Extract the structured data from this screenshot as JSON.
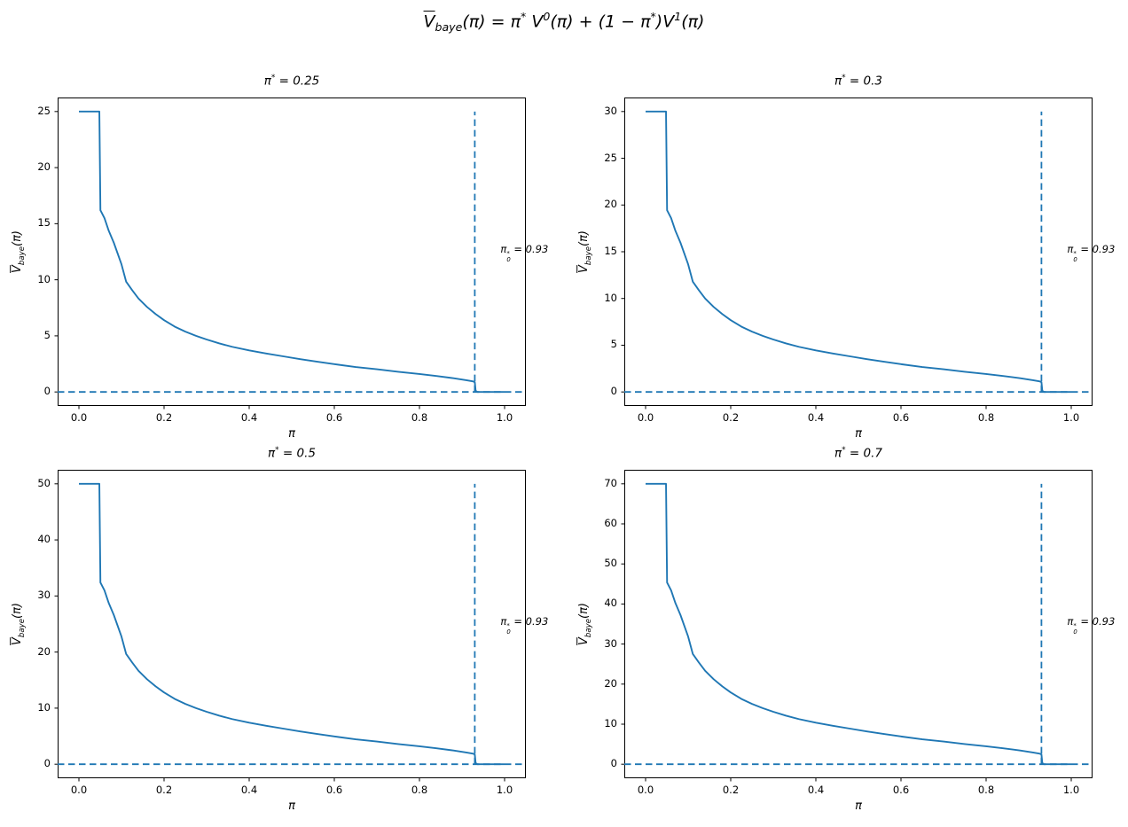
{
  "figure": {
    "title_math": "\\ov{V}_{baye}(π) = π^{*} V^{0}(π) + (1 − π^{*})V^{1}(π)",
    "background": "#ffffff",
    "text_color": "#000000",
    "spine_color": "#000000"
  },
  "chart_data": {
    "type": "line",
    "layout": "2x2-grid",
    "grid": "off",
    "legend": "none",
    "line_color": "#1f77b4",
    "dashed_line_color": "#1f77b4",
    "x_shared": [
      0.0,
      0.048,
      0.0505,
      0.06,
      0.07,
      0.082,
      0.1,
      0.111,
      0.125,
      0.14,
      0.16,
      0.18,
      0.2,
      0.225,
      0.25,
      0.275,
      0.3,
      0.33,
      0.36,
      0.4,
      0.44,
      0.48,
      0.52,
      0.56,
      0.6,
      0.65,
      0.7,
      0.75,
      0.8,
      0.84,
      0.88,
      0.91,
      0.925,
      0.93,
      0.932,
      0.936,
      1.0
    ],
    "f_normalized_shared": [
      100,
      100,
      64.8,
      62.0,
      57.5,
      53.2,
      45.5,
      39.3,
      36.3,
      33.3,
      30.3,
      27.8,
      25.6,
      23.3,
      21.5,
      20.0,
      18.7,
      17.3,
      16.1,
      14.8,
      13.7,
      12.7,
      11.7,
      10.8,
      9.9,
      8.9,
      8.1,
      7.2,
      6.4,
      5.7,
      4.9,
      4.2,
      3.8,
      3.5,
      0.4,
      0.0,
      0.0
    ],
    "normalization_note": "subplot curve y = f_normalized_shared x peak_value / 100; peak_value = 100 x pi_star",
    "subplots": [
      {
        "title_math": "π^{*} = 0.25",
        "pi_star": 0.25,
        "peak_value": 25,
        "xlabel_math": "π",
        "ylabel_math": "\\ov{V}_{baye}(π)",
        "xlim": [
          -0.05,
          1.05
        ],
        "ylim": [
          -1.25,
          26.25
        ],
        "xticks": [
          0.0,
          0.2,
          0.4,
          0.6,
          0.8,
          1.0
        ],
        "xtick_labels": [
          "0.0",
          "0.2",
          "0.4",
          "0.6",
          "0.8",
          "1.0"
        ],
        "yticks": [
          0,
          5,
          10,
          15,
          20,
          25
        ],
        "ytick_labels": [
          "0",
          "5",
          "10",
          "15",
          "20",
          "25"
        ],
        "hline_y": 0,
        "vline_x": 0.93,
        "annotation_math": "π_{0}^{*} = 0.93"
      },
      {
        "title_math": "π^{*} = 0.3",
        "pi_star": 0.3,
        "peak_value": 30,
        "xlabel_math": "π",
        "ylabel_math": "\\ov{V}_{baye}(π)",
        "xlim": [
          -0.05,
          1.05
        ],
        "ylim": [
          -1.5,
          31.5
        ],
        "xticks": [
          0.0,
          0.2,
          0.4,
          0.6,
          0.8,
          1.0
        ],
        "xtick_labels": [
          "0.0",
          "0.2",
          "0.4",
          "0.6",
          "0.8",
          "1.0"
        ],
        "yticks": [
          0,
          5,
          10,
          15,
          20,
          25,
          30
        ],
        "ytick_labels": [
          "0",
          "5",
          "10",
          "15",
          "20",
          "25",
          "30"
        ],
        "hline_y": 0,
        "vline_x": 0.93,
        "annotation_math": "π_{0}^{*} = 0.93"
      },
      {
        "title_math": "π^{*} = 0.5",
        "pi_star": 0.5,
        "peak_value": 50,
        "xlabel_math": "π",
        "ylabel_math": "\\ov{V}_{baye}(π)",
        "xlim": [
          -0.05,
          1.05
        ],
        "ylim": [
          -2.5,
          52.5
        ],
        "xticks": [
          0.0,
          0.2,
          0.4,
          0.6,
          0.8,
          1.0
        ],
        "xtick_labels": [
          "0.0",
          "0.2",
          "0.4",
          "0.6",
          "0.8",
          "1.0"
        ],
        "yticks": [
          0,
          10,
          20,
          30,
          40,
          50
        ],
        "ytick_labels": [
          "0",
          "10",
          "20",
          "30",
          "40",
          "50"
        ],
        "hline_y": 0,
        "vline_x": 0.93,
        "annotation_math": "π_{0}^{*} = 0.93"
      },
      {
        "title_math": "π^{*} = 0.7",
        "pi_star": 0.7,
        "peak_value": 70,
        "xlabel_math": "π",
        "ylabel_math": "\\ov{V}_{baye}(π)",
        "xlim": [
          -0.05,
          1.05
        ],
        "ylim": [
          -3.5,
          73.5
        ],
        "xticks": [
          0.0,
          0.2,
          0.4,
          0.6,
          0.8,
          1.0
        ],
        "xtick_labels": [
          "0.0",
          "0.2",
          "0.4",
          "0.6",
          "0.8",
          "1.0"
        ],
        "yticks": [
          0,
          10,
          20,
          30,
          40,
          50,
          60,
          70
        ],
        "ytick_labels": [
          "0",
          "10",
          "20",
          "30",
          "40",
          "50",
          "60",
          "70"
        ],
        "hline_y": 0,
        "vline_x": 0.93,
        "annotation_math": "π_{0}^{*} = 0.93"
      }
    ]
  }
}
